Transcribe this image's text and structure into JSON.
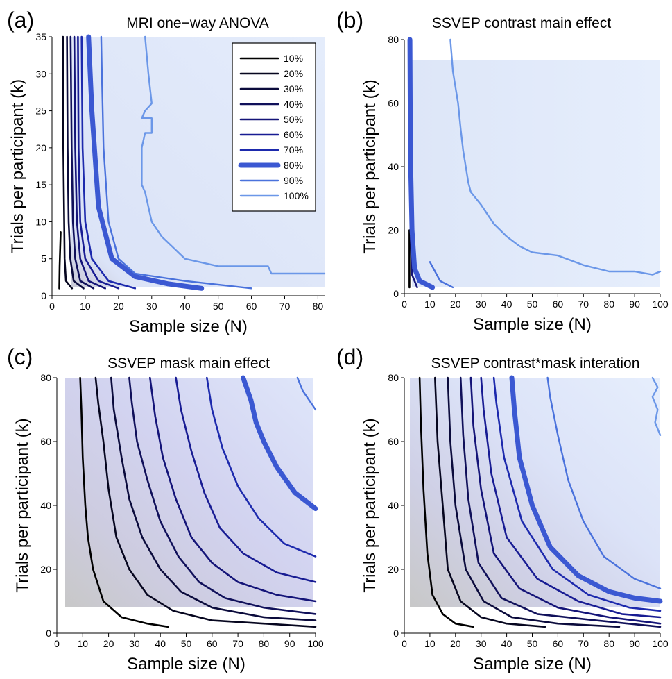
{
  "chart_data": [
    {
      "panel": "(a)",
      "type": "contour",
      "title": "MRI one−way ANOVA",
      "xlabel": "Sample size (N)",
      "ylabel": "Trials per participant (k)",
      "xlim": [
        0,
        82
      ],
      "ylim": [
        0,
        35
      ],
      "xticks": [
        0,
        10,
        20,
        30,
        40,
        50,
        60,
        70,
        80
      ],
      "yticks": [
        0,
        5,
        10,
        15,
        20,
        25,
        30,
        35
      ],
      "grid": false,
      "legend_position": "top-right",
      "legend": [
        "10%",
        "20%",
        "30%",
        "40%",
        "50%",
        "60%",
        "70%",
        "80%",
        "90%",
        "100%"
      ],
      "series": [
        {
          "name": "10%",
          "x": [
            2.2,
            2.3,
            2.6
          ],
          "y": [
            1,
            4,
            8.6
          ]
        },
        {
          "name": "20%",
          "x": [
            6,
            4.2,
            3.8,
            3.4,
            3.3
          ],
          "y": [
            1,
            2,
            5,
            20,
            35
          ]
        },
        {
          "name": "30%",
          "x": [
            9.5,
            6.5,
            5.5,
            5,
            4.7,
            4.5
          ],
          "y": [
            1,
            2,
            5,
            10,
            20,
            35
          ]
        },
        {
          "name": "40%",
          "x": [
            12.5,
            8.5,
            7,
            6.3,
            5.9,
            5.6
          ],
          "y": [
            1,
            2,
            5,
            10,
            20,
            35
          ]
        },
        {
          "name": "50%",
          "x": [
            16,
            11,
            8.5,
            7.5,
            7,
            6.7
          ],
          "y": [
            1,
            2,
            5,
            10,
            20,
            35
          ]
        },
        {
          "name": "60%",
          "x": [
            20,
            14,
            10,
            8.5,
            8,
            7.8
          ],
          "y": [
            1,
            2,
            5,
            10,
            20,
            35
          ]
        },
        {
          "name": "70%",
          "x": [
            25,
            17,
            12,
            10,
            9.2,
            8.9
          ],
          "y": [
            1,
            2,
            5,
            10,
            20,
            35
          ]
        },
        {
          "name": "80%",
          "x": [
            45,
            35,
            25,
            18,
            14,
            12,
            11
          ],
          "y": [
            1,
            1.6,
            2.6,
            5,
            12,
            25,
            35
          ]
        },
        {
          "name": "90%",
          "x": [
            60,
            40,
            25,
            20,
            17,
            15.5,
            15,
            14.8
          ],
          "y": [
            1,
            2,
            3,
            5,
            10,
            20,
            30,
            35
          ]
        },
        {
          "name": "100%",
          "x": [
            82,
            75,
            66,
            65,
            50,
            40,
            33,
            30,
            28,
            27,
            27,
            28,
            30,
            30,
            27,
            28,
            30,
            29,
            28
          ],
          "y": [
            3,
            3,
            3,
            4,
            4,
            5,
            8,
            10,
            14,
            15,
            20,
            22,
            22,
            24,
            24,
            25,
            26,
            30,
            35
          ]
        }
      ]
    },
    {
      "panel": "(b)",
      "type": "contour",
      "title": "SSVEP contrast main effect",
      "xlabel": "Sample size (N)",
      "ylabel": "Trials per participant (k)",
      "xlim": [
        0,
        100
      ],
      "ylim": [
        0,
        80
      ],
      "xticks": [
        0,
        10,
        20,
        30,
        40,
        50,
        60,
        70,
        80,
        90,
        100
      ],
      "yticks": [
        0,
        20,
        40,
        60,
        80
      ],
      "grid": false,
      "series": [
        {
          "name": "10%",
          "x": [
            2,
            2,
            2
          ],
          "y": [
            2,
            10,
            20
          ]
        },
        {
          "name": "50%",
          "x": [
            5,
            3,
            2.5
          ],
          "y": [
            2,
            6,
            18
          ]
        },
        {
          "name": "80%",
          "x": [
            11,
            6,
            4,
            3,
            2.5,
            2.3,
            2.2
          ],
          "y": [
            2,
            4,
            8,
            20,
            40,
            60,
            80
          ]
        },
        {
          "name": "90%",
          "x": [
            19,
            14,
            10
          ],
          "y": [
            2,
            4,
            10
          ]
        },
        {
          "name": "100%",
          "x": [
            100,
            97,
            90,
            80,
            70,
            60,
            50,
            45,
            40,
            35,
            30,
            26,
            25,
            23,
            22,
            21,
            19,
            18
          ],
          "y": [
            7,
            6,
            7,
            7,
            9,
            12,
            13,
            15,
            18,
            22,
            28,
            32,
            35,
            45,
            52,
            60,
            70,
            80
          ]
        }
      ]
    },
    {
      "panel": "(c)",
      "type": "contour",
      "title": "SSVEP mask main effect",
      "xlabel": "Sample size (N)",
      "ylabel": "Trials per participant (k)",
      "xlim": [
        0,
        100
      ],
      "ylim": [
        0,
        80
      ],
      "xticks": [
        0,
        10,
        20,
        30,
        40,
        50,
        60,
        70,
        80,
        90,
        100
      ],
      "yticks": [
        0,
        20,
        40,
        60,
        80
      ],
      "grid": false,
      "series": [
        {
          "name": "10%",
          "x": [
            43,
            35,
            25,
            18,
            14,
            12,
            11,
            10,
            9.5,
            9
          ],
          "y": [
            2,
            3,
            5,
            10,
            20,
            30,
            40,
            55,
            70,
            80
          ]
        },
        {
          "name": "20%",
          "x": [
            100,
            80,
            60,
            45,
            35,
            28,
            23,
            20,
            18,
            16,
            15
          ],
          "y": [
            2,
            3,
            4,
            7,
            12,
            20,
            30,
            45,
            60,
            72,
            80
          ]
        },
        {
          "name": "30%",
          "x": [
            100,
            80,
            60,
            48,
            40,
            33,
            28,
            25,
            22,
            21
          ],
          "y": [
            4,
            5,
            8,
            13,
            20,
            30,
            42,
            55,
            70,
            80
          ]
        },
        {
          "name": "40%",
          "x": [
            100,
            80,
            65,
            55,
            47,
            40,
            35,
            31,
            29,
            28
          ],
          "y": [
            6,
            8,
            11,
            16,
            24,
            35,
            48,
            60,
            72,
            80
          ]
        },
        {
          "name": "50%",
          "x": [
            100,
            85,
            70,
            60,
            52,
            46,
            41,
            38,
            36
          ],
          "y": [
            10,
            12,
            16,
            22,
            30,
            42,
            55,
            68,
            80
          ]
        },
        {
          "name": "60%",
          "x": [
            100,
            85,
            72,
            63,
            57,
            52,
            48,
            46
          ],
          "y": [
            16,
            19,
            25,
            33,
            44,
            57,
            70,
            80
          ]
        },
        {
          "name": "70%",
          "x": [
            100,
            88,
            78,
            70,
            64,
            60,
            58
          ],
          "y": [
            24,
            28,
            36,
            46,
            58,
            70,
            80
          ]
        },
        {
          "name": "80%",
          "x": [
            100,
            92,
            85,
            80,
            77,
            75,
            72
          ],
          "y": [
            39,
            44,
            52,
            60,
            66,
            73,
            80
          ]
        },
        {
          "name": "90%",
          "x": [
            100,
            95,
            93
          ],
          "y": [
            70,
            76,
            80
          ]
        }
      ]
    },
    {
      "panel": "(d)",
      "type": "contour",
      "title": "SSVEP contrast*mask interation",
      "xlabel": "Sample size (N)",
      "ylabel": "Trials per participant (k)",
      "xlim": [
        0,
        100
      ],
      "ylim": [
        0,
        80
      ],
      "xticks": [
        0,
        10,
        20,
        30,
        40,
        50,
        60,
        70,
        80,
        90,
        100
      ],
      "yticks": [
        0,
        20,
        40,
        60,
        80
      ],
      "grid": false,
      "series": [
        {
          "name": "10%",
          "x": [
            27,
            20,
            15,
            11,
            9,
            7.5,
            6.5,
            6
          ],
          "y": [
            2,
            3,
            6,
            12,
            25,
            45,
            65,
            80
          ]
        },
        {
          "name": "20%",
          "x": [
            55,
            40,
            30,
            22,
            17,
            15,
            13,
            12
          ],
          "y": [
            2,
            3,
            5,
            10,
            20,
            40,
            60,
            80
          ]
        },
        {
          "name": "30%",
          "x": [
            84,
            60,
            42,
            31,
            24,
            20,
            18,
            17
          ],
          "y": [
            2,
            3,
            5,
            10,
            20,
            40,
            60,
            80
          ]
        },
        {
          "name": "40%",
          "x": [
            100,
            75,
            52,
            38,
            29,
            25,
            23,
            22
          ],
          "y": [
            2,
            4,
            6,
            11,
            22,
            42,
            62,
            80
          ]
        },
        {
          "name": "50%",
          "x": [
            100,
            80,
            60,
            45,
            35,
            30,
            27,
            26
          ],
          "y": [
            3,
            5,
            8,
            14,
            25,
            45,
            65,
            80
          ]
        },
        {
          "name": "60%",
          "x": [
            100,
            85,
            68,
            52,
            40,
            34,
            31,
            30
          ],
          "y": [
            5,
            6,
            10,
            17,
            30,
            50,
            70,
            80
          ]
        },
        {
          "name": "70%",
          "x": [
            100,
            88,
            72,
            58,
            46,
            39,
            36,
            35
          ],
          "y": [
            7,
            8,
            12,
            20,
            35,
            55,
            72,
            80
          ]
        },
        {
          "name": "80%",
          "x": [
            100,
            90,
            80,
            68,
            57,
            50,
            45,
            43,
            42
          ],
          "y": [
            10,
            11,
            13,
            18,
            27,
            40,
            55,
            70,
            80
          ]
        },
        {
          "name": "90%",
          "x": [
            100,
            90,
            78,
            70,
            64,
            60,
            57,
            56
          ],
          "y": [
            14,
            17,
            24,
            35,
            48,
            62,
            74,
            80
          ]
        },
        {
          "name": "100%",
          "x": [
            100,
            98,
            99,
            97,
            99,
            97
          ],
          "y": [
            62,
            66,
            70,
            74,
            77,
            80
          ]
        }
      ]
    }
  ]
}
